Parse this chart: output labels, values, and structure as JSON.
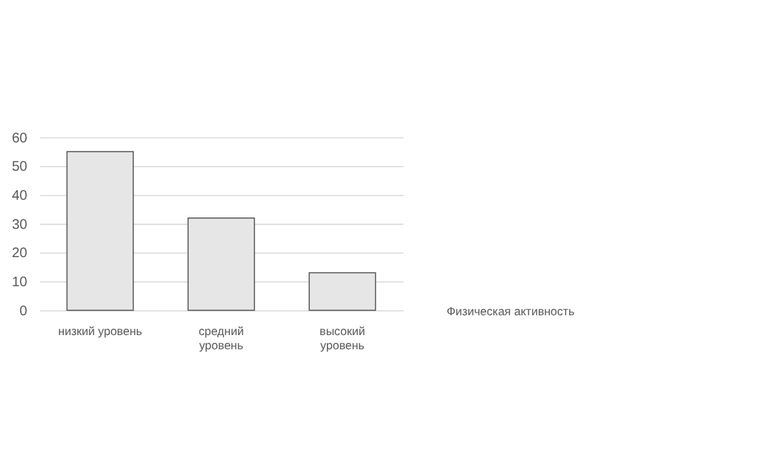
{
  "chart_data": {
    "type": "bar",
    "categories": [
      "низкий уровень",
      "средний уровень",
      "высокий уровень"
    ],
    "values": [
      55,
      32,
      13
    ],
    "color": "#e6e6e6",
    "xlabel": "Физическая активность",
    "ylim": [
      0,
      60
    ],
    "yticks": [
      0,
      10,
      20,
      30,
      40,
      50,
      60
    ],
    "grid": "y"
  }
}
